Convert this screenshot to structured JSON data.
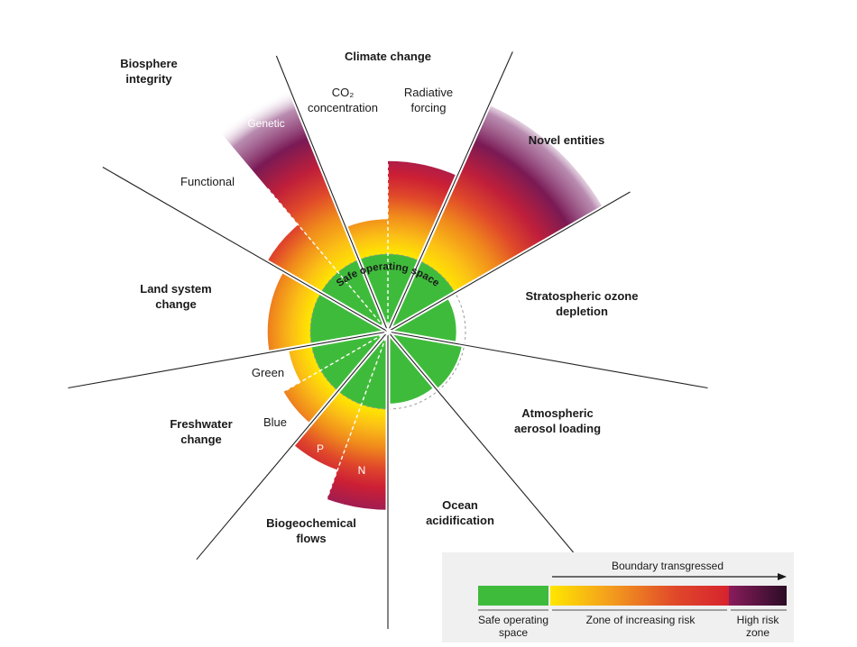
{
  "colors": {
    "safe": "#3fbb3c",
    "risk_start": "#ffe600",
    "risk_mid": "#f39a1e",
    "risk_end": "#d6232e",
    "high_start": "#8a1c5c",
    "high_end": "#2b0c26",
    "divider": "#222222"
  },
  "diagram": {
    "center_label": "Safe operating space",
    "categories": {
      "climate_change": "Climate change",
      "co2": "CO₂\nconcentration",
      "radiative_forcing": "Radiative\nforcing",
      "novel_entities": "Novel entities",
      "ozone": "Stratospheric ozone\ndepletion",
      "aerosol": "Atmospheric\naerosol loading",
      "ocean": "Ocean\nacidification",
      "biogeochemical": "Biogeochemical\nflows",
      "p": "P",
      "n": "N",
      "freshwater": "Freshwater\nchange",
      "blue": "Blue",
      "green": "Green",
      "land": "Land system\nchange",
      "functional": "Functional",
      "genetic": "Genetic",
      "biosphere": "Biosphere\nintegrity"
    },
    "segment_levels": {
      "co2": 1.45,
      "radiative_forcing": 2.2,
      "novel_entities": 3.2,
      "ozone": 0.88,
      "aerosol": 0.97,
      "ocean": 0.93,
      "p": 1.9,
      "n": 2.3,
      "blue": 1.55,
      "green": 1.3,
      "land": 1.55,
      "functional": 1.8,
      "genetic": 3.4
    }
  },
  "legend": {
    "arrow_label": "Boundary transgressed",
    "safe_label": "Safe operating\nspace",
    "risk_label": "Zone of increasing risk",
    "high_label": "High risk\nzone"
  }
}
